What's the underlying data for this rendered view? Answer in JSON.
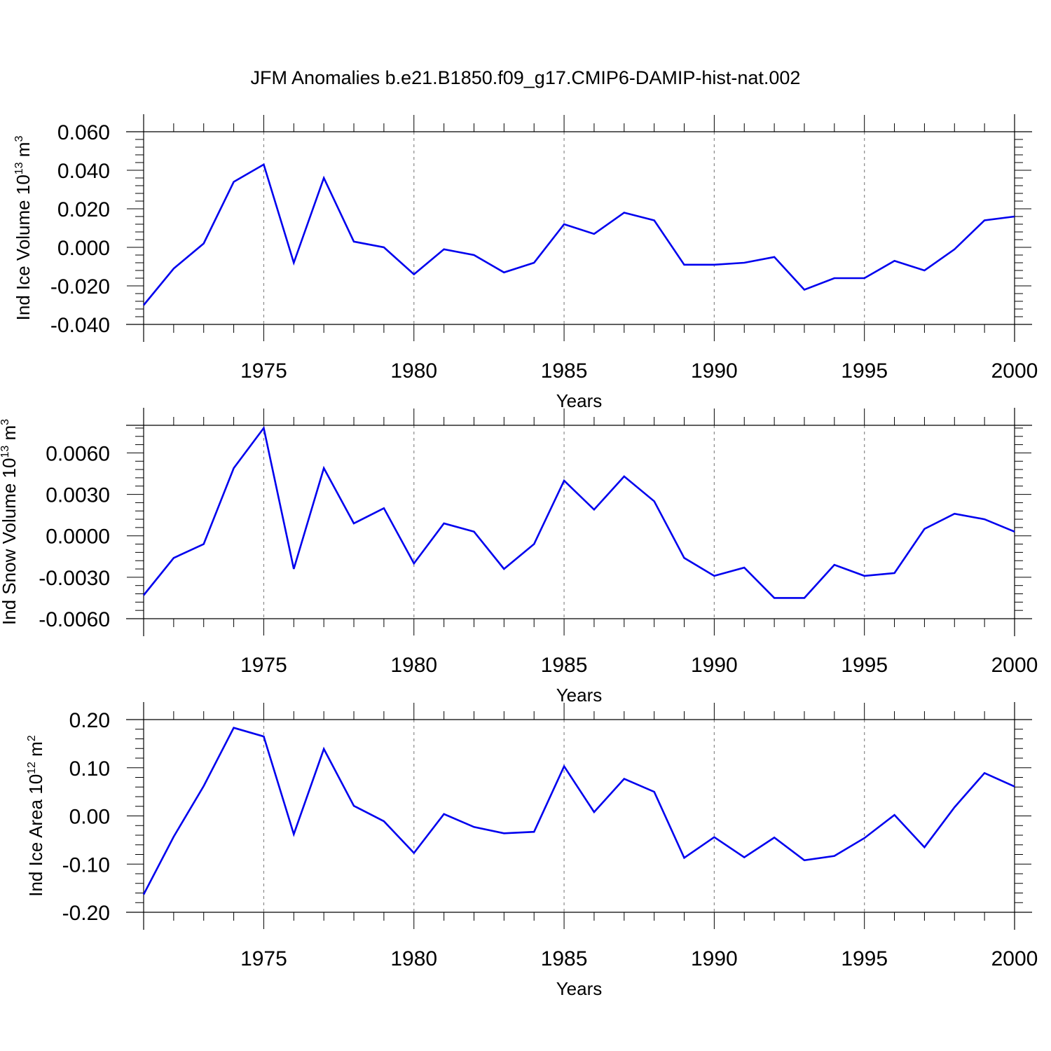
{
  "title": "JFM Anomalies b.e21.B1850.f09_g17.CMIP6-DAMIP-hist-nat.002",
  "chart_data": [
    {
      "type": "line",
      "name": "ice-volume",
      "ylabel": "Ind Ice Volume 10",
      "ylabel_exp": "13",
      "ylabel_unit": " m",
      "ylabel_unit_exp": "3",
      "xlabel": "Years",
      "xlim": [
        1971,
        2000
      ],
      "ylim": [
        -0.04,
        0.06
      ],
      "xticks": [
        1975,
        1980,
        1985,
        1990,
        1995,
        2000
      ],
      "yticks": [
        -0.04,
        -0.02,
        0.0,
        0.02,
        0.04,
        0.06
      ],
      "ytick_labels": [
        "-0.040",
        "-0.020",
        "0.000",
        "0.020",
        "0.040",
        "0.060"
      ],
      "color": "#0000ee",
      "x": [
        1971,
        1972,
        1973,
        1974,
        1975,
        1976,
        1977,
        1978,
        1979,
        1980,
        1981,
        1982,
        1983,
        1984,
        1985,
        1986,
        1987,
        1988,
        1989,
        1990,
        1991,
        1992,
        1993,
        1994,
        1995,
        1996,
        1997,
        1998,
        1999,
        2000
      ],
      "values": [
        -0.03,
        -0.011,
        0.002,
        0.034,
        0.043,
        -0.008,
        0.036,
        0.003,
        0.0,
        -0.014,
        -0.001,
        -0.004,
        -0.013,
        -0.008,
        0.012,
        0.007,
        0.018,
        0.014,
        -0.009,
        -0.009,
        -0.008,
        -0.005,
        -0.022,
        -0.016,
        -0.016,
        -0.007,
        -0.012,
        -0.001,
        0.014,
        0.016
      ]
    },
    {
      "type": "line",
      "name": "snow-volume",
      "ylabel": "Ind Snow Volume 10",
      "ylabel_exp": "13",
      "ylabel_unit": " m",
      "ylabel_unit_exp": "3",
      "xlabel": "Years",
      "xlim": [
        1971,
        2000
      ],
      "ylim": [
        -0.006,
        0.008
      ],
      "xticks": [
        1975,
        1980,
        1985,
        1990,
        1995,
        2000
      ],
      "yticks": [
        -0.006,
        -0.003,
        0.0,
        0.003,
        0.006
      ],
      "ytick_labels": [
        "-0.0060",
        "-0.0030",
        "0.0000",
        "0.0030",
        "0.0060"
      ],
      "color": "#0000ee",
      "x": [
        1971,
        1972,
        1973,
        1974,
        1975,
        1976,
        1977,
        1978,
        1979,
        1980,
        1981,
        1982,
        1983,
        1984,
        1985,
        1986,
        1987,
        1988,
        1989,
        1990,
        1991,
        1992,
        1993,
        1994,
        1995,
        1996,
        1997,
        1998,
        1999,
        2000
      ],
      "values": [
        -0.0043,
        -0.0016,
        -0.0006,
        0.0049,
        0.0078,
        -0.0024,
        0.0049,
        0.0009,
        0.002,
        -0.002,
        0.0009,
        0.0003,
        -0.0024,
        -0.0006,
        0.004,
        0.0019,
        0.0043,
        0.0025,
        -0.0016,
        -0.0029,
        -0.0023,
        -0.0045,
        -0.0045,
        -0.0021,
        -0.0029,
        -0.0027,
        0.0005,
        0.0016,
        0.0012,
        0.0003
      ]
    },
    {
      "type": "line",
      "name": "ice-area",
      "ylabel": "Ind Ice Area 10",
      "ylabel_exp": "12",
      "ylabel_unit": " m",
      "ylabel_unit_exp": "2",
      "xlabel": "Years",
      "xlim": [
        1971,
        2000
      ],
      "ylim": [
        -0.2,
        0.2
      ],
      "xticks": [
        1975,
        1980,
        1985,
        1990,
        1995,
        2000
      ],
      "yticks": [
        -0.2,
        -0.1,
        0.0,
        0.1,
        0.2
      ],
      "ytick_labels": [
        "-0.20",
        "-0.10",
        "0.00",
        "0.10",
        "0.20"
      ],
      "color": "#0000ee",
      "x": [
        1971,
        1972,
        1973,
        1974,
        1975,
        1976,
        1977,
        1978,
        1979,
        1980,
        1981,
        1982,
        1983,
        1984,
        1985,
        1986,
        1987,
        1988,
        1989,
        1990,
        1991,
        1992,
        1993,
        1994,
        1995,
        1996,
        1997,
        1998,
        1999,
        2000
      ],
      "values": [
        -0.163,
        -0.043,
        0.062,
        0.183,
        0.165,
        -0.038,
        0.139,
        0.021,
        -0.011,
        -0.077,
        0.004,
        -0.023,
        -0.036,
        -0.033,
        0.103,
        0.008,
        0.077,
        0.05,
        -0.087,
        -0.044,
        -0.086,
        -0.045,
        -0.092,
        -0.083,
        -0.046,
        0.002,
        -0.065,
        0.018,
        0.089,
        0.061
      ]
    }
  ]
}
